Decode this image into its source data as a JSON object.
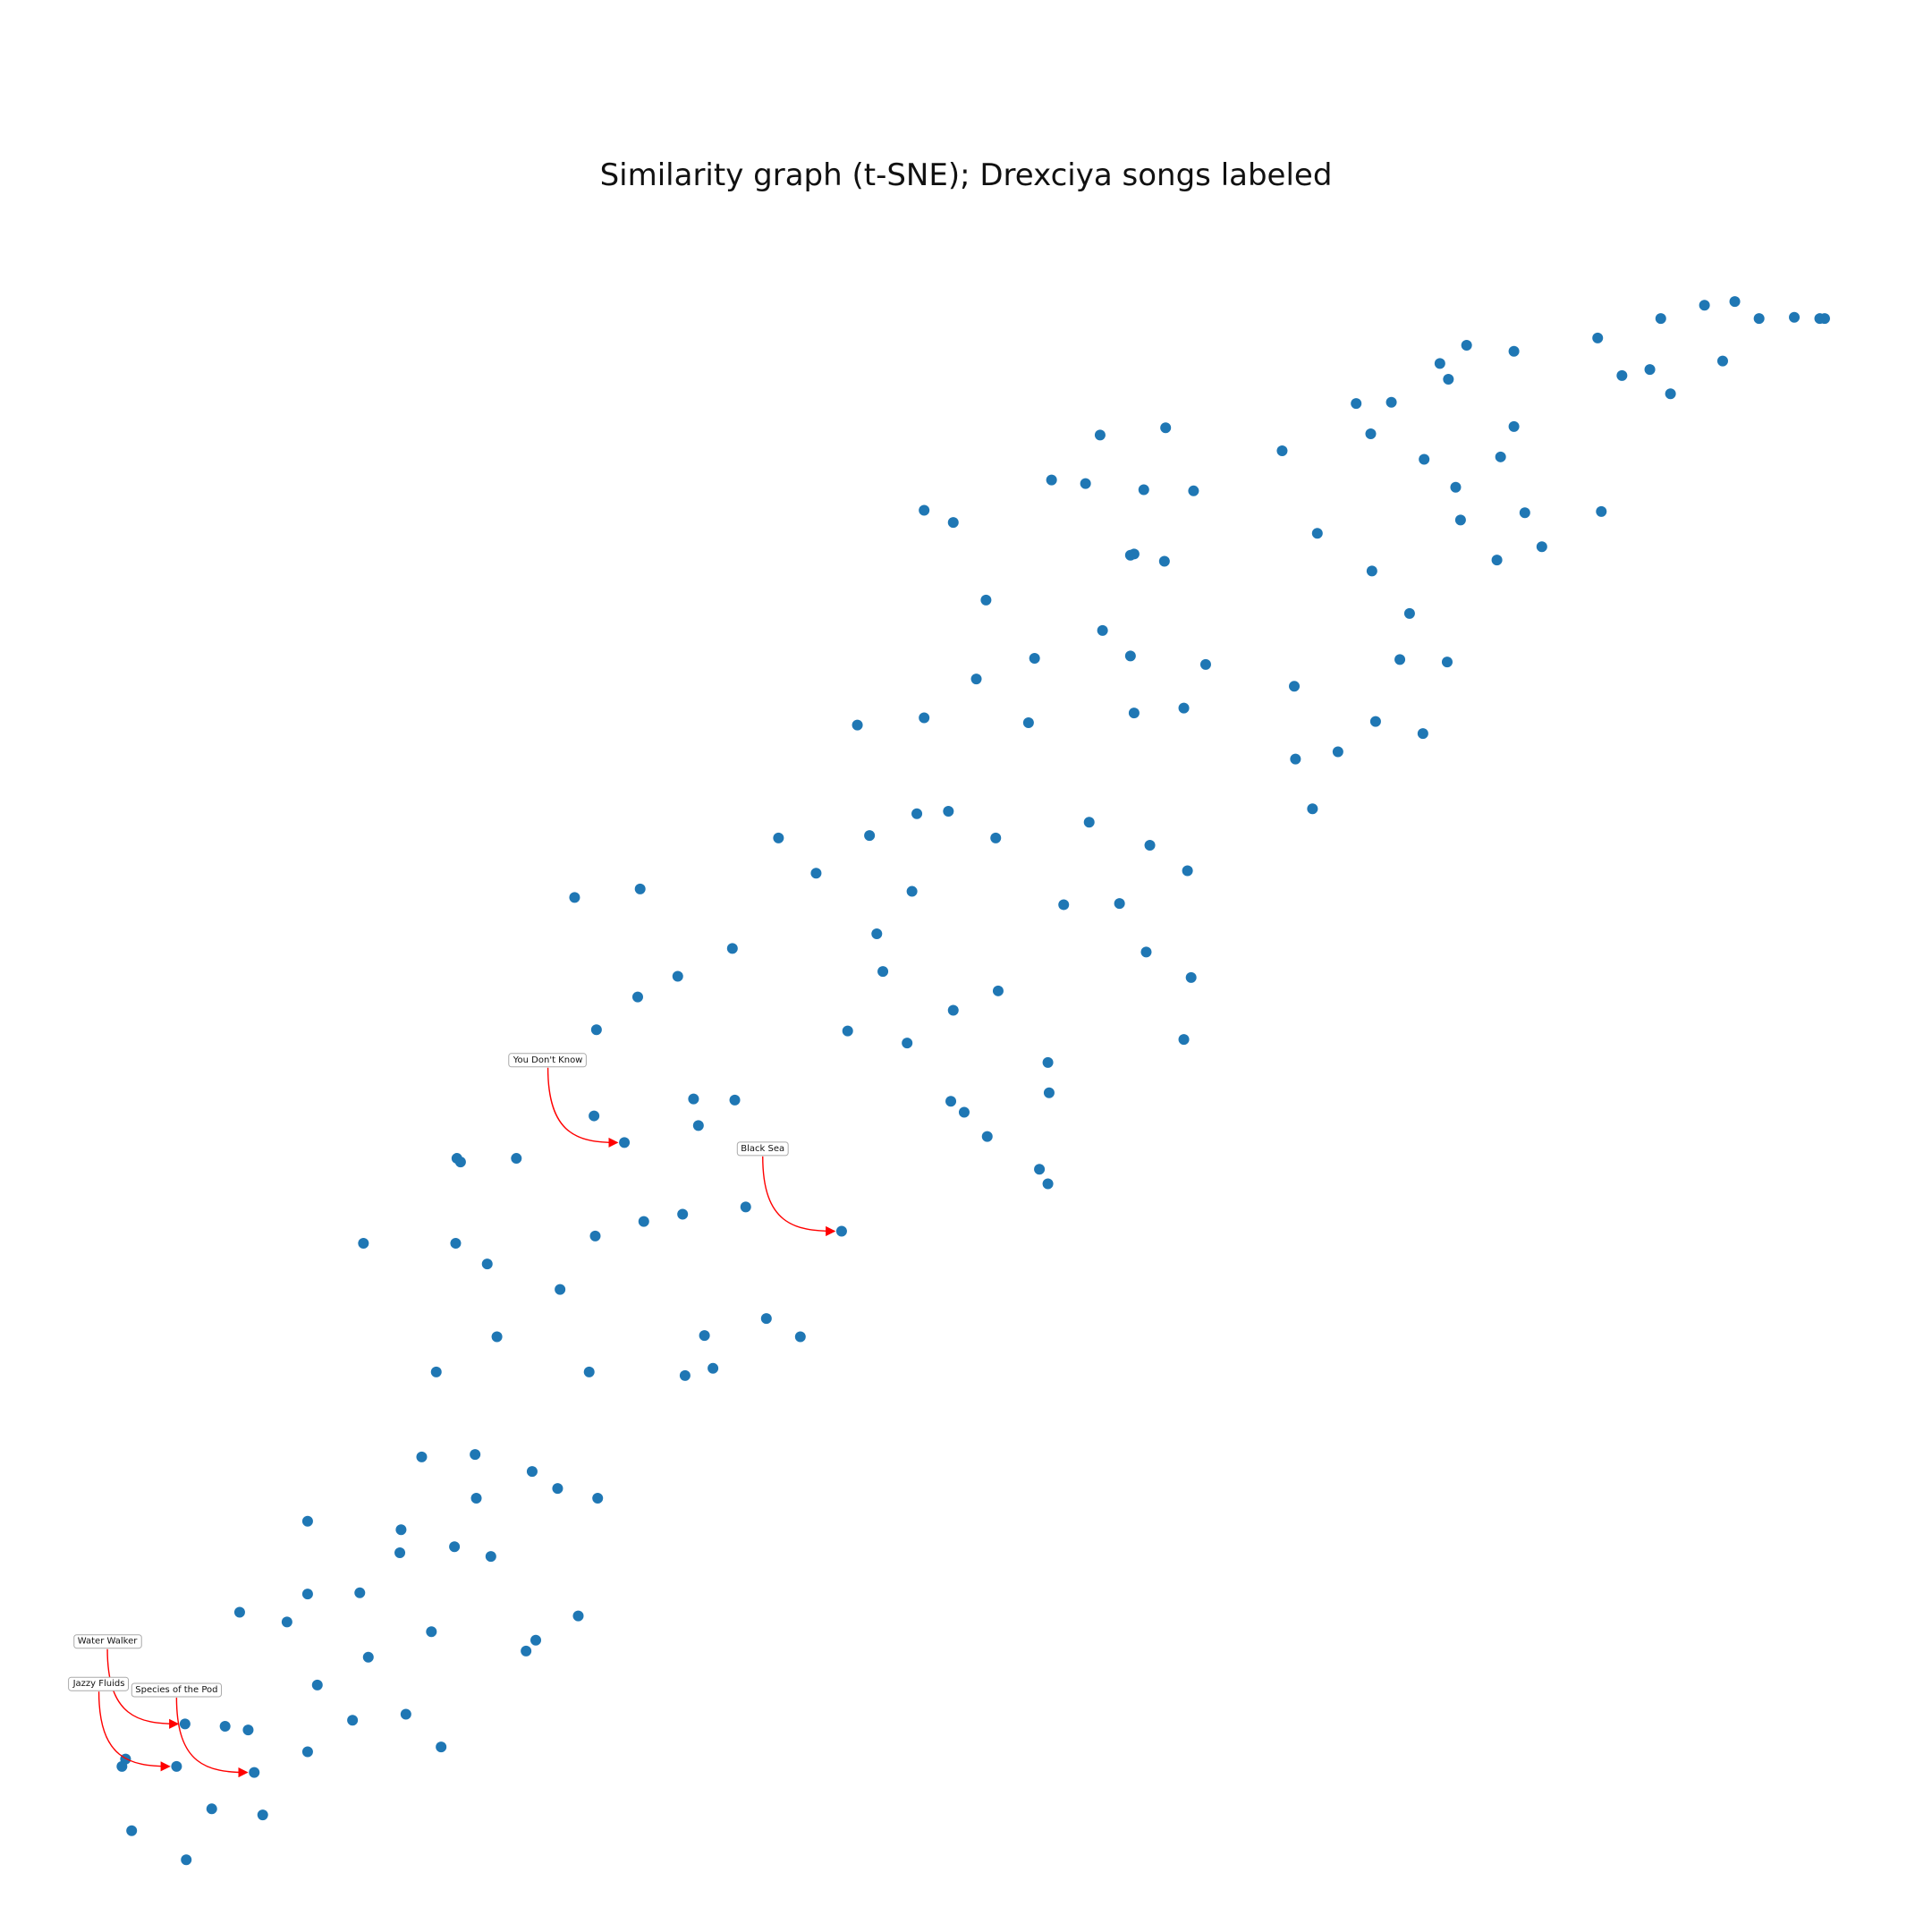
{
  "chart_data": {
    "type": "scatter",
    "title": "Similarity graph (t-SNE); Drexciya songs labeled",
    "xlabel": "",
    "ylabel": "",
    "axes_visible": false,
    "grid": false,
    "xlim": [
      0,
      1533
    ],
    "ylim": [
      -1533,
      0
    ],
    "point_color": "#1f77b4",
    "annotation_color": "#ff0000",
    "points": [
      [
        1470,
        233
      ],
      [
        1474,
        233
      ],
      [
        1449,
        232
      ],
      [
        1420,
        233
      ],
      [
        1400,
        219
      ],
      [
        1375,
        222
      ],
      [
        1339,
        233
      ],
      [
        1287,
        249
      ],
      [
        1390,
        268
      ],
      [
        1330,
        275
      ],
      [
        1307,
        280
      ],
      [
        1347,
        295
      ],
      [
        1179,
        255
      ],
      [
        1218,
        260
      ],
      [
        1157,
        270
      ],
      [
        1164,
        283
      ],
      [
        1088,
        303
      ],
      [
        1117,
        302
      ],
      [
        1218,
        322
      ],
      [
        1100,
        328
      ],
      [
        1207,
        347
      ],
      [
        1144,
        349
      ],
      [
        1170,
        372
      ],
      [
        1027,
        342
      ],
      [
        1174,
        399
      ],
      [
        1227,
        393
      ],
      [
        1290,
        392
      ],
      [
        1241,
        421
      ],
      [
        1204,
        432
      ],
      [
        1056,
        410
      ],
      [
        1101,
        441
      ],
      [
        1132,
        476
      ],
      [
        1124,
        514
      ],
      [
        1163,
        516
      ],
      [
        1037,
        536
      ],
      [
        1104,
        565
      ],
      [
        1143,
        575
      ],
      [
        1073,
        590
      ],
      [
        1038,
        596
      ],
      [
        1052,
        637
      ],
      [
        931,
        323
      ],
      [
        877,
        329
      ],
      [
        837,
        366
      ],
      [
        865,
        369
      ],
      [
        913,
        374
      ],
      [
        954,
        375
      ],
      [
        732,
        391
      ],
      [
        756,
        401
      ],
      [
        902,
        428
      ],
      [
        905,
        427
      ],
      [
        930,
        433
      ],
      [
        783,
        465
      ],
      [
        879,
        490
      ],
      [
        902,
        511
      ],
      [
        823,
        513
      ],
      [
        964,
        518
      ],
      [
        775,
        530
      ],
      [
        905,
        558
      ],
      [
        946,
        554
      ],
      [
        732,
        562
      ],
      [
        818,
        566
      ],
      [
        677,
        568
      ],
      [
        687,
        659
      ],
      [
        612,
        661
      ],
      [
        643,
        690
      ],
      [
        726,
        641
      ],
      [
        752,
        639
      ],
      [
        791,
        661
      ],
      [
        868,
        648
      ],
      [
        918,
        667
      ],
      [
        949,
        688
      ],
      [
        847,
        716
      ],
      [
        893,
        715
      ],
      [
        722,
        705
      ],
      [
        693,
        740
      ],
      [
        915,
        755
      ],
      [
        952,
        776
      ],
      [
        698,
        771
      ],
      [
        793,
        787
      ],
      [
        756,
        803
      ],
      [
        669,
        820
      ],
      [
        718,
        830
      ],
      [
        946,
        827
      ],
      [
        834,
        846
      ],
      [
        754,
        878
      ],
      [
        835,
        871
      ],
      [
        765,
        887
      ],
      [
        784,
        907
      ],
      [
        827,
        934
      ],
      [
        834,
        946
      ],
      [
        444,
        710
      ],
      [
        498,
        703
      ],
      [
        574,
        752
      ],
      [
        529,
        775
      ],
      [
        496,
        792
      ],
      [
        462,
        819
      ],
      [
        460,
        890
      ],
      [
        485,
        912
      ],
      [
        542,
        876
      ],
      [
        576,
        877
      ],
      [
        546,
        898
      ],
      [
        347,
        925
      ],
      [
        350,
        928
      ],
      [
        396,
        925
      ],
      [
        664,
        985
      ],
      [
        585,
        965
      ],
      [
        533,
        971
      ],
      [
        501,
        977
      ],
      [
        461,
        989
      ],
      [
        270,
        995
      ],
      [
        346,
        995
      ],
      [
        372,
        1012
      ],
      [
        432,
        1033
      ],
      [
        380,
        1072
      ],
      [
        551,
        1071
      ],
      [
        602,
        1057
      ],
      [
        630,
        1072
      ],
      [
        330,
        1101
      ],
      [
        456,
        1101
      ],
      [
        535,
        1104
      ],
      [
        558,
        1098
      ],
      [
        318,
        1171
      ],
      [
        362,
        1169
      ],
      [
        409,
        1183
      ],
      [
        430,
        1197
      ],
      [
        463,
        1205
      ],
      [
        363,
        1205
      ],
      [
        224,
        1224
      ],
      [
        301,
        1231
      ],
      [
        300,
        1250
      ],
      [
        345,
        1245
      ],
      [
        375,
        1253
      ],
      [
        224,
        1284
      ],
      [
        267,
        1283
      ],
      [
        168,
        1299
      ],
      [
        207,
        1307
      ],
      [
        447,
        1302
      ],
      [
        326,
        1315
      ],
      [
        412,
        1322
      ],
      [
        404,
        1331
      ],
      [
        274,
        1336
      ],
      [
        232,
        1359
      ],
      [
        123,
        1391
      ],
      [
        156,
        1393
      ],
      [
        175,
        1396
      ],
      [
        261,
        1388
      ],
      [
        305,
        1383
      ],
      [
        116,
        1426
      ],
      [
        74,
        1420
      ],
      [
        71,
        1426
      ],
      [
        180,
        1431
      ],
      [
        224,
        1414
      ],
      [
        334,
        1410
      ],
      [
        145,
        1461
      ],
      [
        187,
        1466
      ],
      [
        79,
        1479
      ],
      [
        124,
        1503
      ]
    ],
    "annotations": [
      {
        "label": "You Don't Know",
        "target": [
          485,
          912
        ],
        "text_at": [
          422,
          843
        ]
      },
      {
        "label": "Black Sea",
        "target": [
          664,
          985
        ],
        "text_at": [
          599,
          916
        ]
      },
      {
        "label": "Water Walker",
        "target": [
          123,
          1391
        ],
        "text_at": [
          59,
          1322
        ]
      },
      {
        "label": "Jazzy Fluids",
        "target": [
          116,
          1426
        ],
        "text_at": [
          52,
          1357
        ]
      },
      {
        "label": "Species of the Pod",
        "target": [
          180,
          1431
        ],
        "text_at": [
          116,
          1362
        ]
      }
    ]
  }
}
